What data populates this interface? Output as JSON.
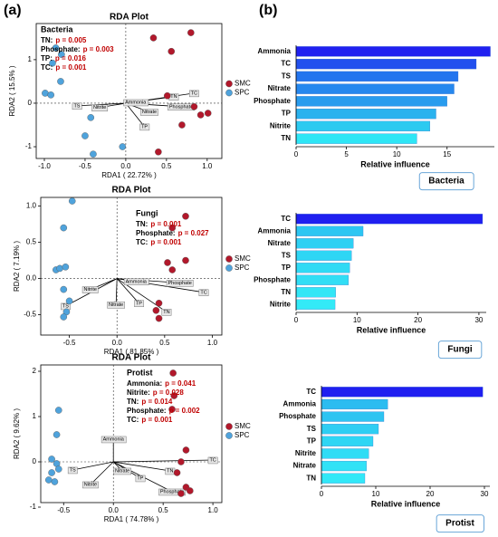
{
  "panel_labels": {
    "a": "(a)",
    "b": "(b)"
  },
  "chart_data": [
    {
      "type": "biplot",
      "title": "RDA Plot",
      "group": "Bacteria",
      "stats": [
        {
          "label": "TN:",
          "value": "p = 0.005"
        },
        {
          "label": "Phosphate:",
          "value": "p = 0.003"
        },
        {
          "label": "TP:",
          "value": "p = 0.016"
        },
        {
          "label": "TC:",
          "value": "p = 0.001"
        }
      ],
      "xlabel": "RDA1 ( 22.72% )",
      "ylabel": "RDA2 ( 15.5% )",
      "xlim": [
        -1.1,
        1.18
      ],
      "ylim": [
        -1.27,
        1.83
      ],
      "xticks": [
        {
          "value": -1,
          "label": "-1.0"
        },
        -0.5,
        {
          "value": 0,
          "label": "0.0"
        },
        0.5,
        {
          "value": 1,
          "label": "1.0"
        }
      ],
      "yticks": [
        -1,
        0,
        1
      ],
      "series": [
        {
          "name": "SMC",
          "color": "#b2182b",
          "x": [
            0.8,
            0.34,
            0.56,
            0.51,
            0.84,
            0.92,
            1.01,
            0.69,
            0.4
          ],
          "y": [
            1.62,
            1.5,
            1.19,
            0.17,
            -0.08,
            -0.27,
            -0.23,
            -0.5,
            -1.12
          ]
        },
        {
          "name": "SPC",
          "color": "#4fa3dc",
          "x": [
            -0.86,
            -0.79,
            -0.9,
            -0.99,
            -0.92,
            -0.8,
            -0.43,
            -0.5,
            -0.4,
            -0.04
          ],
          "y": [
            1.27,
            1.12,
            0.92,
            0.23,
            0.19,
            0.5,
            -0.33,
            -0.75,
            -1.17,
            -1.0
          ]
        }
      ],
      "arrows": {
        "names": [
          "TS",
          "Nitrite",
          "Nitrate",
          "Ammonia",
          "TN",
          "TC",
          "Phosphate",
          "TP"
        ],
        "x": [
          -0.6,
          -0.32,
          0.29,
          0.12,
          0.59,
          0.84,
          0.68,
          0.23
        ],
        "y": [
          -0.06,
          -0.1,
          -0.2,
          0.02,
          0.15,
          0.23,
          -0.08,
          -0.54
        ]
      }
    },
    {
      "type": "biplot",
      "title": "RDA Plot",
      "group": "Fungi",
      "stats": [
        {
          "label": "TN:",
          "value": "p = 0.001"
        },
        {
          "label": "Phosphate:",
          "value": "p = 0.027"
        },
        {
          "label": "TC:",
          "value": "p = 0.001"
        }
      ],
      "xlabel": "RDA1 ( 81.85% )",
      "ylabel": "RDA2 ( 7.19% )",
      "xlim": [
        -0.8,
        1.1
      ],
      "ylim": [
        -0.78,
        1.12
      ],
      "xticks": [
        -0.5,
        {
          "value": 0,
          "label": "0.0"
        },
        0.5,
        {
          "value": 1,
          "label": "1.0"
        }
      ],
      "yticks": [
        -0.5,
        {
          "value": 0,
          "label": "0.0"
        },
        0.5,
        {
          "value": 1,
          "label": "1.0"
        }
      ],
      "series": [
        {
          "name": "SMC",
          "color": "#b2182b",
          "x": [
            0.72,
            0.58,
            0.72,
            0.53,
            0.58,
            0.44,
            0.41,
            0.44
          ],
          "y": [
            0.86,
            0.7,
            0.25,
            0.22,
            0.12,
            -0.34,
            -0.44,
            -0.55
          ]
        },
        {
          "name": "SPC",
          "color": "#4fa3dc",
          "x": [
            -0.47,
            -0.56,
            -0.64,
            -0.6,
            -0.54,
            -0.56,
            -0.5,
            -0.53,
            -0.56
          ],
          "y": [
            1.07,
            0.7,
            0.12,
            0.14,
            0.16,
            -0.15,
            -0.31,
            -0.46,
            -0.53
          ]
        }
      ],
      "arrows": {
        "names": [
          "Nitrite",
          "TS",
          "Nitrate",
          "TP",
          "TN",
          "Ammonia",
          "Phosphate",
          "TC"
        ],
        "x": [
          -0.28,
          -0.54,
          -0.01,
          0.23,
          0.52,
          0.2,
          0.66,
          0.91
        ],
        "y": [
          -0.15,
          -0.38,
          -0.36,
          -0.34,
          -0.46,
          -0.04,
          -0.06,
          -0.19
        ]
      }
    },
    {
      "type": "biplot",
      "title": "RDA Plot",
      "group": "Protist",
      "stats": [
        {
          "label": "Ammonia:",
          "value": "p = 0.041"
        },
        {
          "label": "Nitrite:",
          "value": "p = 0.028"
        },
        {
          "label": "TN:",
          "value": "p = 0.014"
        },
        {
          "label": "Phosphate:",
          "value": "p = 0.002"
        },
        {
          "label": "TC:",
          "value": "p = 0.001"
        }
      ],
      "xlabel": "RDA1 ( 74.78% )",
      "ylabel": "RDA2 ( 9.62% )",
      "xlim": [
        -0.73,
        1.09
      ],
      "ylim": [
        -0.9,
        2.14
      ],
      "xticks": [
        -0.5,
        {
          "value": 0,
          "label": "0.0"
        },
        0.5,
        {
          "value": 1,
          "label": "1.0"
        }
      ],
      "yticks": [
        -1,
        0,
        1,
        2
      ],
      "series": [
        {
          "name": "SMC",
          "color": "#b2182b",
          "x": [
            0.6,
            0.61,
            0.59,
            0.73,
            0.68,
            0.64,
            0.73,
            0.68,
            0.77
          ],
          "y": [
            1.96,
            1.46,
            1.16,
            0.26,
            0,
            -0.24,
            -0.56,
            -0.7,
            -0.64
          ]
        },
        {
          "name": "SPC",
          "color": "#4fa3dc",
          "x": [
            -0.55,
            -0.57,
            -0.62,
            -0.57,
            -0.62,
            -0.55,
            -0.65,
            -0.59
          ],
          "y": [
            1.14,
            0.6,
            0.06,
            -0.04,
            -0.24,
            -0.16,
            -0.4,
            -0.44
          ]
        }
      ],
      "arrows": {
        "names": [
          "Ammonia",
          "TS",
          "Nitrite",
          "Nitrate",
          "TP",
          "TN",
          "TC",
          "Phosphate"
        ],
        "x": [
          0,
          -0.41,
          -0.23,
          0.09,
          0.27,
          0.57,
          1.0,
          0.59
        ],
        "y": [
          0.5,
          -0.18,
          -0.5,
          -0.2,
          -0.36,
          -0.2,
          0.04,
          -0.66
        ]
      }
    },
    {
      "type": "bar",
      "label": "Bacteria",
      "xlabel": "Relative influence",
      "categories": [
        "Ammonia",
        "TC",
        "TS",
        "Nitrate",
        "Phosphate",
        "TP",
        "Nitrite",
        "TN"
      ],
      "values": [
        19.3,
        17.9,
        16.1,
        15.7,
        15.0,
        13.9,
        13.3,
        12.0
      ],
      "colors": [
        "#2020f0",
        "#2250ee",
        "#2475ee",
        "#2688ee",
        "#289cee",
        "#2ab2ee",
        "#2ccaf0",
        "#2ee6f5"
      ],
      "xlim": [
        0,
        19.7
      ],
      "xticks": [
        0,
        5,
        10,
        15
      ]
    },
    {
      "type": "bar",
      "label": "Fungi",
      "xlabel": "Relative influence",
      "categories": [
        "TC",
        "Ammonia",
        "Nitrate",
        "TS",
        "TP",
        "Phosphate",
        "TN",
        "Nitrite"
      ],
      "values": [
        30.6,
        11.0,
        9.4,
        9.1,
        8.8,
        8.6,
        6.5,
        6.4
      ],
      "colors": [
        "#1f1ff0",
        "#2cc6f2",
        "#2ed0f3",
        "#2fd6f4",
        "#30daf4",
        "#31def5",
        "#32e6f6",
        "#33eaf7"
      ],
      "xlim": [
        0,
        31.2
      ],
      "xticks": [
        0,
        10,
        20,
        30
      ]
    },
    {
      "type": "bar",
      "label": "Protist",
      "xlabel": "Relative influence",
      "categories": [
        "TC",
        "Ammonia",
        "Phosphate",
        "TS",
        "TP",
        "Nitrite",
        "Nitrate",
        "TN"
      ],
      "values": [
        29.7,
        12.2,
        11.5,
        10.5,
        9.5,
        8.7,
        8.3,
        8.0
      ],
      "colors": [
        "#1f1ff0",
        "#2cbcf0",
        "#2dc4f1",
        "#2ecef3",
        "#2fd6f4",
        "#30dcf5",
        "#31e2f6",
        "#32e8f7"
      ],
      "xlim": [
        0,
        31
      ],
      "xticks": [
        0,
        10,
        20,
        30
      ]
    }
  ]
}
